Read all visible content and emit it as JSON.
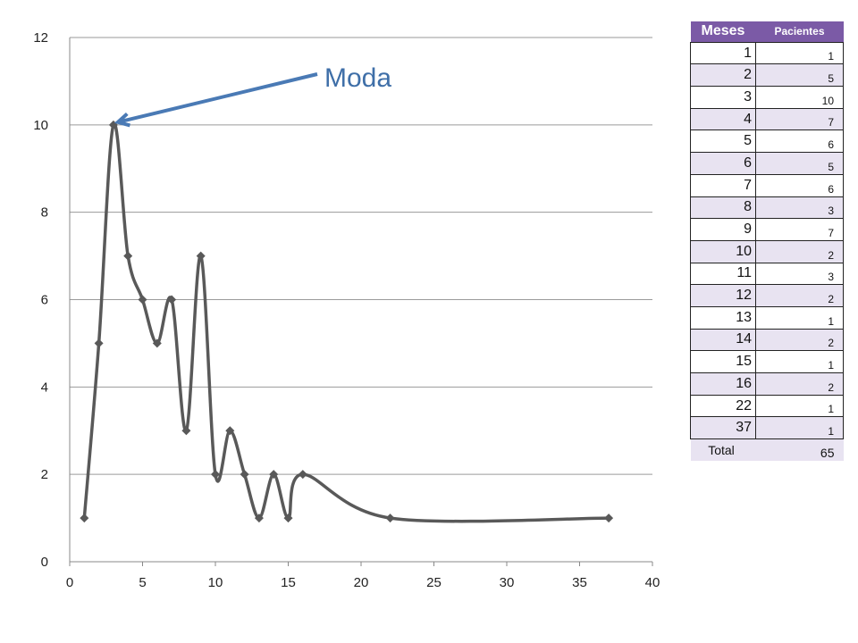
{
  "chart_data": {
    "type": "line",
    "x": [
      1,
      2,
      3,
      4,
      5,
      6,
      7,
      8,
      9,
      10,
      11,
      12,
      13,
      14,
      15,
      16,
      22,
      37
    ],
    "series": [
      {
        "values": [
          1,
          5,
          10,
          7,
          6,
          5,
          6,
          3,
          7,
          2,
          3,
          2,
          1,
          2,
          1,
          2,
          1,
          1
        ]
      }
    ],
    "xlim": [
      0,
      40
    ],
    "ylim": [
      0,
      12
    ],
    "xticks": [
      0,
      5,
      10,
      15,
      20,
      25,
      30,
      35,
      40
    ],
    "yticks": [
      0,
      2,
      4,
      6,
      8,
      10,
      12
    ],
    "grid": "horizontal",
    "line_color": "#595959",
    "annotation": {
      "text": "Moda",
      "target_x": 3,
      "target_y": 10,
      "color": "#4a7ab5"
    }
  },
  "table": {
    "headers": [
      "Meses",
      "Pacientes"
    ],
    "rows": [
      [
        "1",
        "1"
      ],
      [
        "2",
        "5"
      ],
      [
        "3",
        "10"
      ],
      [
        "4",
        "7"
      ],
      [
        "5",
        "6"
      ],
      [
        "6",
        "5"
      ],
      [
        "7",
        "6"
      ],
      [
        "8",
        "3"
      ],
      [
        "9",
        "7"
      ],
      [
        "10",
        "2"
      ],
      [
        "11",
        "3"
      ],
      [
        "12",
        "2"
      ],
      [
        "13",
        "1"
      ],
      [
        "14",
        "2"
      ],
      [
        "15",
        "1"
      ],
      [
        "16",
        "2"
      ],
      [
        "22",
        "1"
      ],
      [
        "37",
        "1"
      ]
    ],
    "total": [
      "Total",
      "65"
    ],
    "header_color": "#7b5aa6",
    "alt_row_color": "#e8e3f1"
  }
}
